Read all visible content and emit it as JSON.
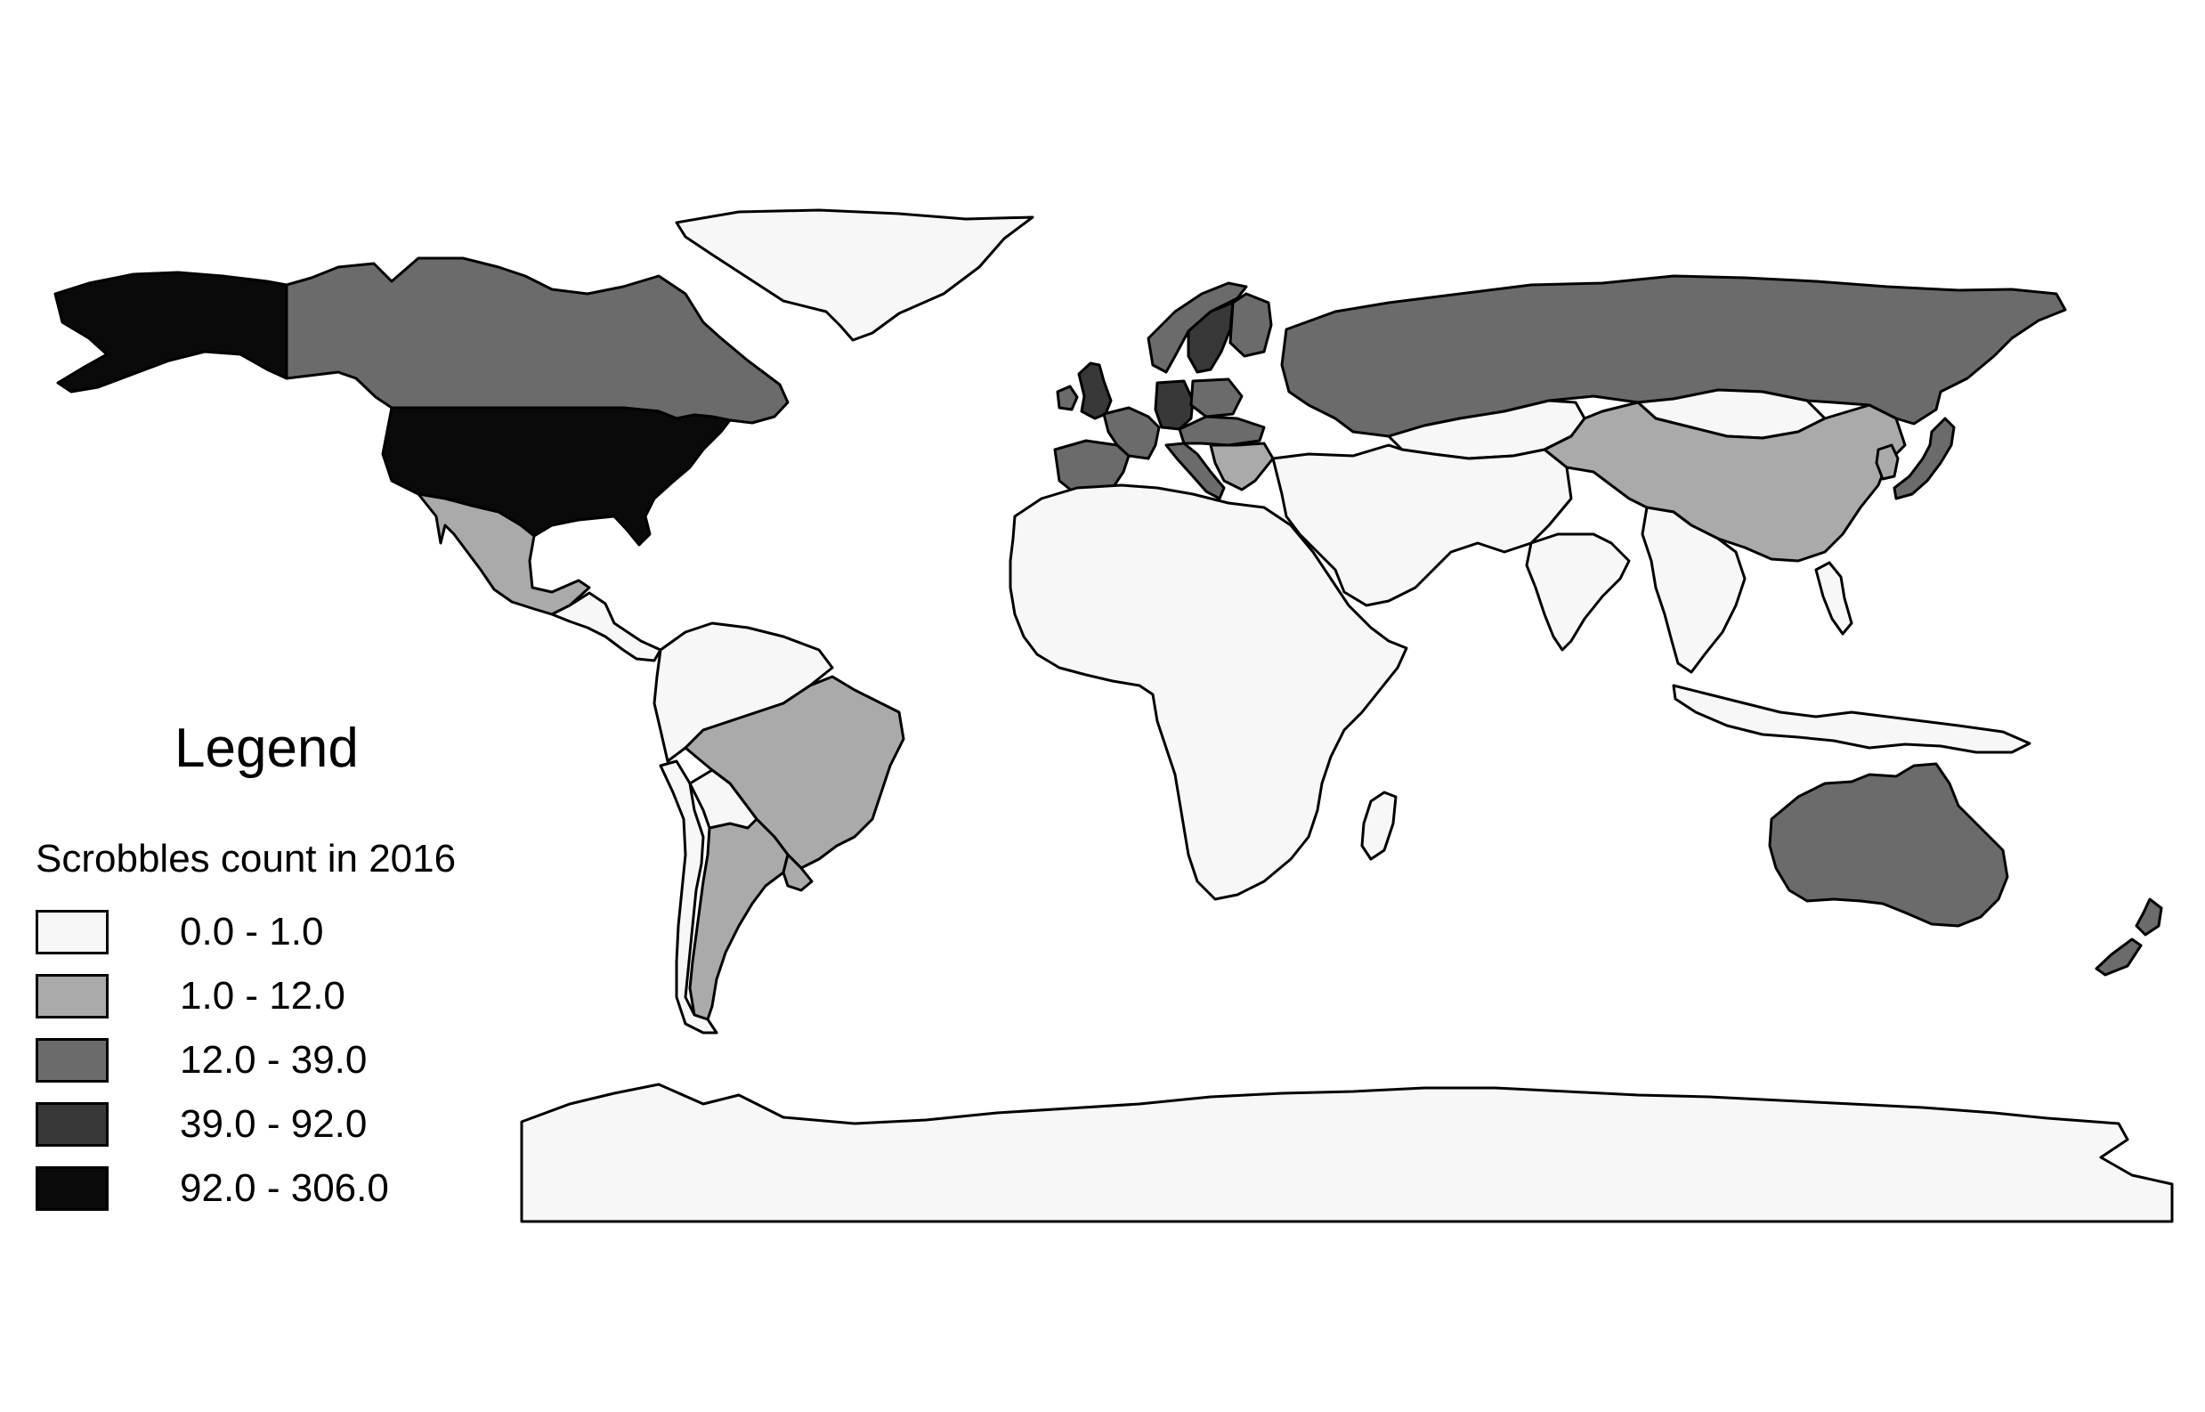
{
  "legend": {
    "title": "Legend",
    "subtitle": "Scrobbles count in 2016",
    "classes": [
      {
        "label": "0.0 - 1.0",
        "color": "#f7f7f7"
      },
      {
        "label": "1.0 - 12.0",
        "color": "#aaaaaa"
      },
      {
        "label": "12.0 - 39.0",
        "color": "#6b6b6b"
      },
      {
        "label": "39.0 - 92.0",
        "color": "#383838"
      },
      {
        "label": "92.0 - 306.0",
        "color": "#0a0a0a"
      }
    ]
  },
  "map": {
    "projection": "equirectangular",
    "background": "#ffffff",
    "border_color": "#000000",
    "regions": [
      {
        "name": "Greenland",
        "class": 0
      },
      {
        "name": "Alaska",
        "class": 4
      },
      {
        "name": "Canada",
        "class": 2
      },
      {
        "name": "United States",
        "class": 4
      },
      {
        "name": "Mexico",
        "class": 1
      },
      {
        "name": "Central America and Caribbean",
        "class": 0
      },
      {
        "name": "Northern South America",
        "class": 0
      },
      {
        "name": "Brazil",
        "class": 1
      },
      {
        "name": "Argentina",
        "class": 1
      },
      {
        "name": "Uruguay",
        "class": 1
      },
      {
        "name": "Chile",
        "class": 0
      },
      {
        "name": "Paraguay and Bolivia",
        "class": 0
      },
      {
        "name": "United Kingdom",
        "class": 3
      },
      {
        "name": "Ireland",
        "class": 2
      },
      {
        "name": "Iberia",
        "class": 2
      },
      {
        "name": "France",
        "class": 2
      },
      {
        "name": "Germany",
        "class": 3
      },
      {
        "name": "Norway",
        "class": 2
      },
      {
        "name": "Sweden",
        "class": 3
      },
      {
        "name": "Finland",
        "class": 2
      },
      {
        "name": "Poland",
        "class": 2
      },
      {
        "name": "Central Europe",
        "class": 2
      },
      {
        "name": "Italy",
        "class": 2
      },
      {
        "name": "Balkans",
        "class": 1
      },
      {
        "name": "Russia",
        "class": 2
      },
      {
        "name": "Kazakhstan",
        "class": 0
      },
      {
        "name": "Mongolia",
        "class": 0
      },
      {
        "name": "China",
        "class": 1
      },
      {
        "name": "Japan",
        "class": 2
      },
      {
        "name": "Korea",
        "class": 1
      },
      {
        "name": "Middle East and Central Asia",
        "class": 0
      },
      {
        "name": "India",
        "class": 0
      },
      {
        "name": "Southeast Asia",
        "class": 0
      },
      {
        "name": "Indonesia",
        "class": 0
      },
      {
        "name": "Philippines",
        "class": 0
      },
      {
        "name": "Africa",
        "class": 0
      },
      {
        "name": "Madagascar",
        "class": 0
      },
      {
        "name": "Australia",
        "class": 2
      },
      {
        "name": "New Zealand",
        "class": 2
      },
      {
        "name": "Antarctica",
        "class": 0
      }
    ]
  }
}
